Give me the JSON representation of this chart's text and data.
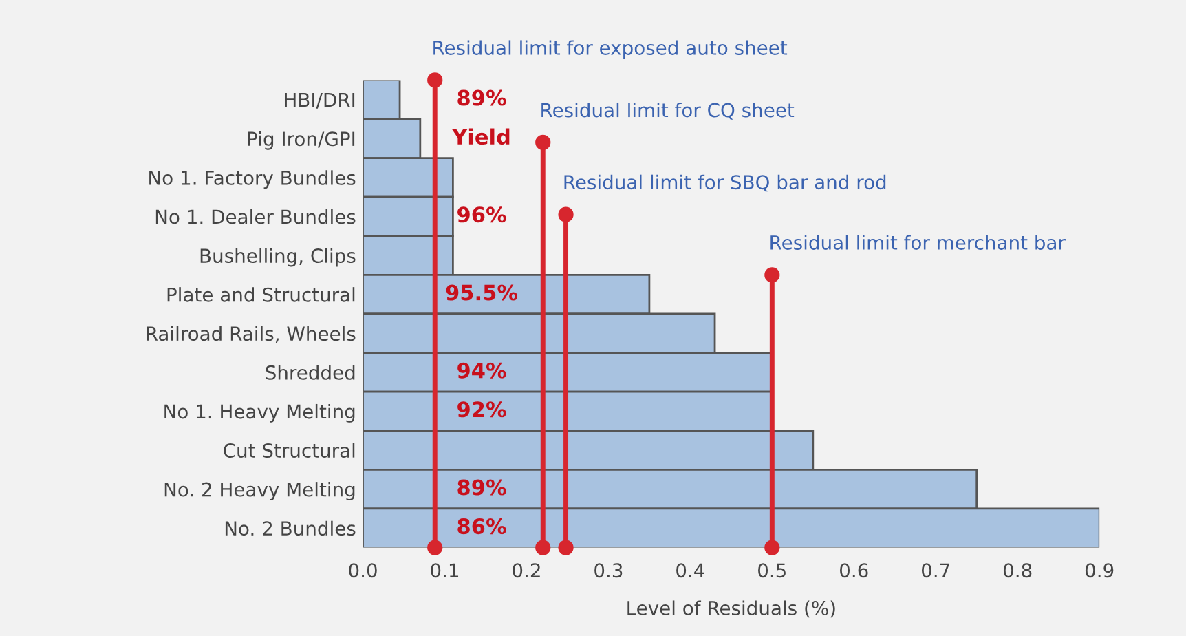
{
  "chart_data": {
    "type": "bar",
    "orientation": "horizontal",
    "xlabel": "Level of Residuals (%)",
    "categories": [
      "HBI/DRI",
      "Pig Iron/GPI",
      "No 1. Factory Bundles",
      "No 1. Dealer Bundles",
      "Bushelling, Clips",
      "Plate and Structural",
      "Railroad Rails, Wheels",
      "Shredded",
      "No 1. Heavy Melting",
      "Cut Structural",
      "No. 2 Heavy Melting",
      "No. 2 Bundles"
    ],
    "values": [
      0.045,
      0.07,
      0.11,
      0.11,
      0.11,
      0.35,
      0.43,
      0.5,
      0.5,
      0.55,
      0.75,
      0.9
    ],
    "color": "#a8c2e0",
    "xlim": [
      0,
      0.9
    ],
    "xticks": [
      {
        "value": 0,
        "label": "0.0"
      },
      0.1,
      0.2,
      0.3,
      0.4,
      0.5,
      0.6,
      0.7,
      0.8,
      0.9
    ],
    "grid": false,
    "ref_lines": [
      {
        "axis": "x",
        "value": 0.088,
        "label": "Residual limit for exposed auto sheet",
        "color": "#d7262e"
      },
      {
        "axis": "x",
        "value": 0.22,
        "label": "Residual limit for CQ sheet",
        "color": "#d7262e"
      },
      {
        "axis": "x",
        "value": 0.248,
        "label": "Residual limit for SBQ bar and rod",
        "color": "#d7262e"
      },
      {
        "axis": "x",
        "value": 0.5,
        "label": "Residual limit for merchant bar",
        "color": "#d7262e"
      }
    ],
    "annotations": [
      "89%",
      "Yield",
      "96%",
      "95.5%",
      "94%",
      "92%",
      "89%",
      "86%"
    ]
  }
}
